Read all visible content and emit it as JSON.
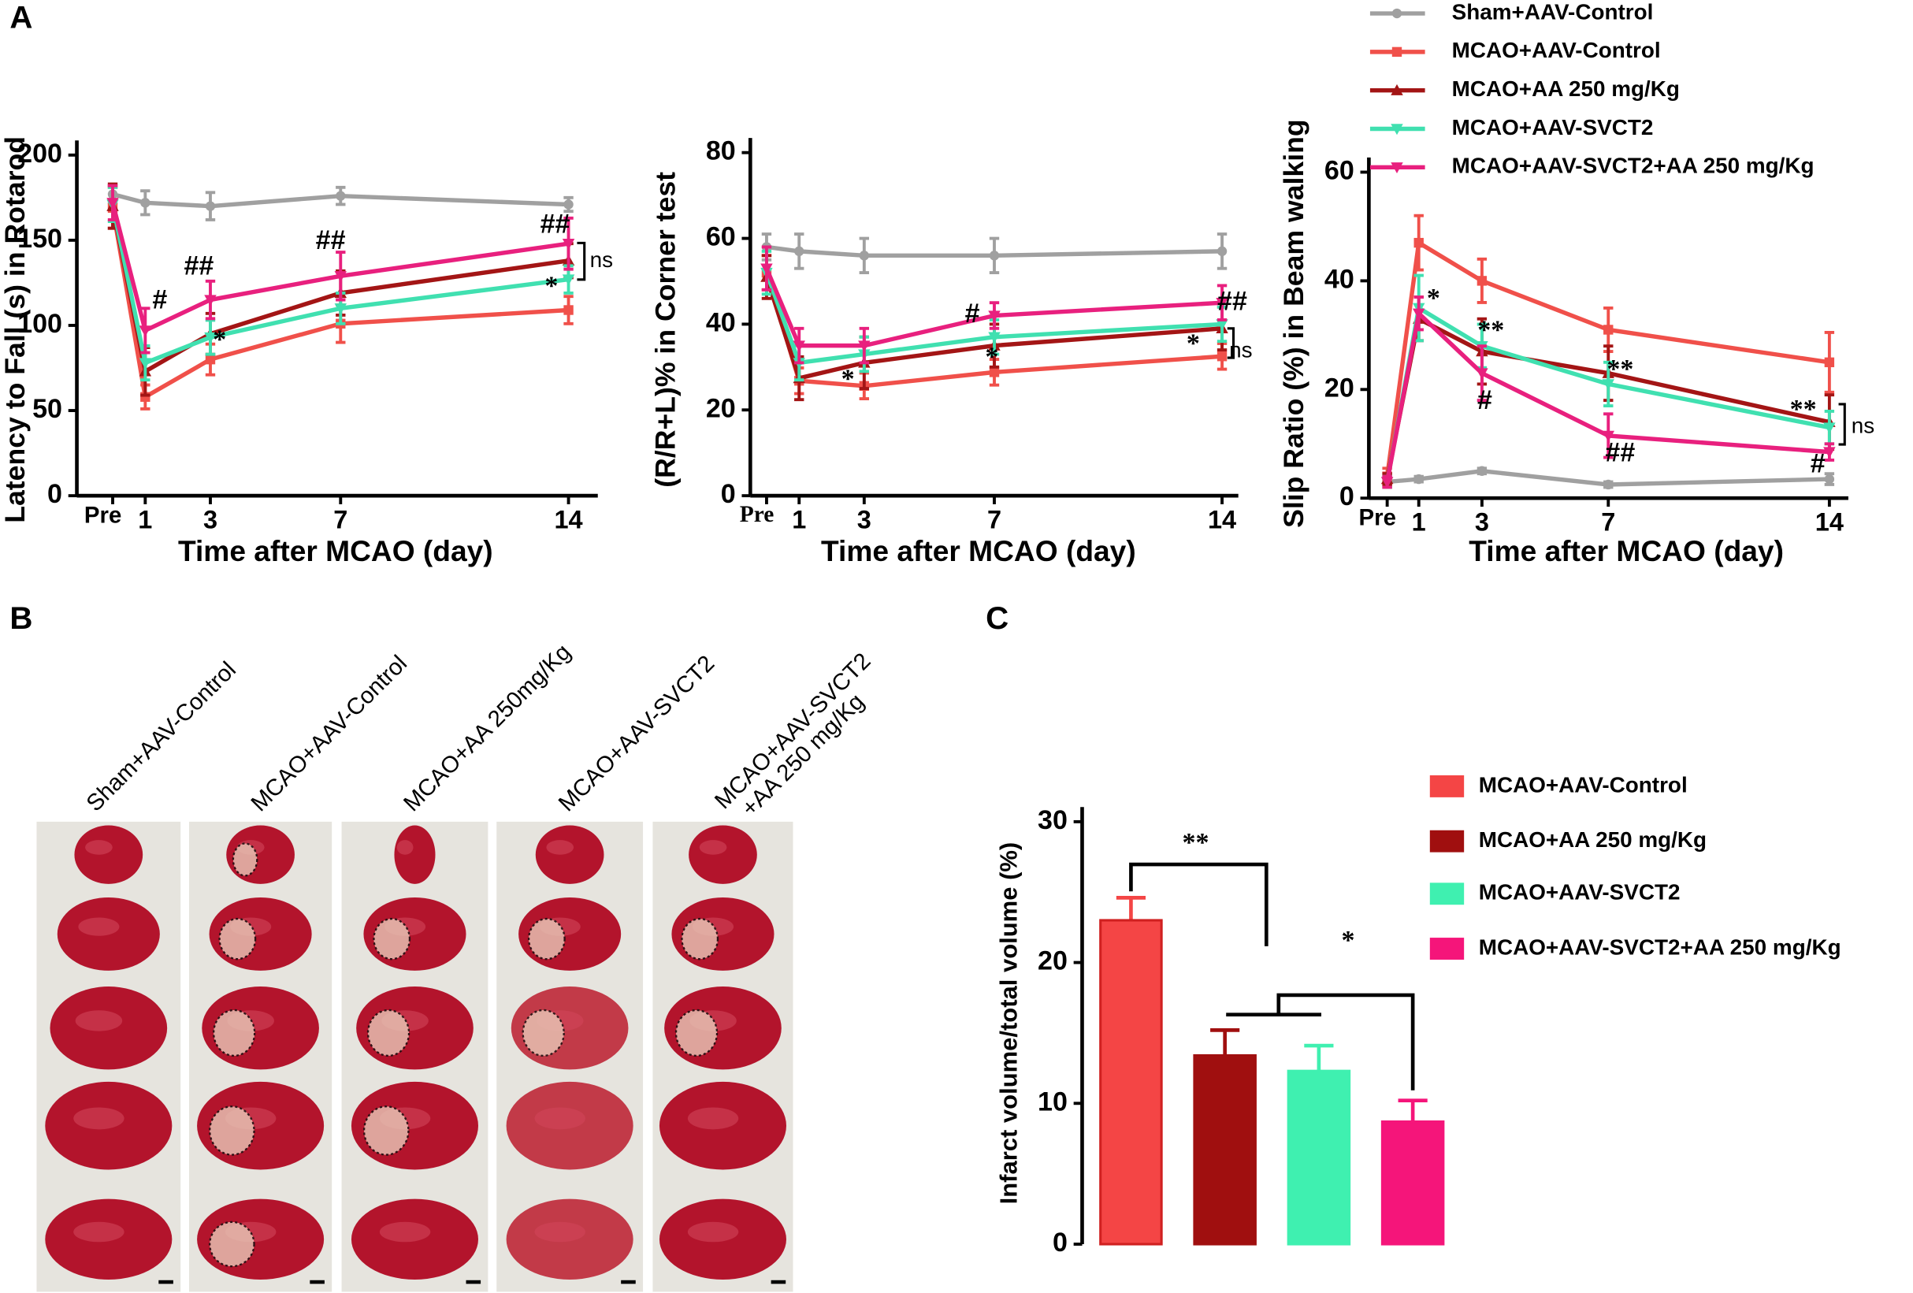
{
  "panels": [
    "A",
    "B",
    "C"
  ],
  "photos": {
    "labels": [
      "Sham+AAV-Control",
      "MCAO+AAV-Control",
      "MCAO+AA 250mg/Kg",
      "MCAO+AAV-SVCT2",
      [
        "MCAO+AAV-SVCT2",
        "+AA 250 mg/Kg"
      ]
    ]
  },
  "chart_data": [
    {
      "type": "line",
      "ylabel": "Latency to Fall (s) in Rotarod",
      "xlabel": "Time after MCAO (day)",
      "x": [
        0,
        1,
        3,
        7,
        14
      ],
      "xlim": [
        -1.1,
        14.9
      ],
      "xticks": [
        {
          "value": 0,
          "label": "Pre"
        },
        1,
        3,
        7,
        14
      ],
      "ylim": [
        0,
        200
      ],
      "yticks": [
        0,
        50,
        100,
        150,
        200
      ],
      "series": [
        {
          "color": "#a0a0a0",
          "values": [
            177,
            172,
            170,
            176,
            171
          ],
          "errors": [
            5,
            7,
            8,
            5,
            4
          ]
        },
        {
          "color": "#f0504a",
          "values": [
            169,
            58,
            80,
            101,
            109
          ],
          "errors": [
            12,
            7,
            9,
            11,
            8
          ]
        },
        {
          "color": "#a31515",
          "values": [
            170,
            73,
            95,
            119,
            138
          ],
          "errors": [
            13,
            14,
            12,
            13,
            10
          ]
        },
        {
          "color": "#40e0b0",
          "values": [
            171,
            78,
            93,
            110,
            127
          ],
          "errors": [
            10,
            10,
            10,
            9,
            8
          ]
        },
        {
          "color": "#e8207e",
          "values": [
            172,
            97,
            115,
            129,
            148
          ],
          "errors": [
            10,
            13,
            11,
            14,
            15
          ]
        }
      ],
      "annotations": [
        "#",
        "##",
        "##",
        "##",
        "*",
        "*",
        "ns"
      ]
    },
    {
      "type": "line",
      "ylabel": "(R/R+L)% in Corner test",
      "xlabel": "Time after MCAO (day)",
      "x": [
        0,
        1,
        3,
        7,
        14
      ],
      "xlim": [
        -0.5,
        14.5
      ],
      "xticks": [
        {
          "value": 0,
          "label": "Pre"
        },
        1,
        3,
        7,
        14
      ],
      "ylim": [
        0,
        80
      ],
      "yticks": [
        0,
        20,
        40,
        60,
        80
      ],
      "series": [
        {
          "color": "#a0a0a0",
          "values": [
            58,
            57,
            56,
            56,
            57
          ],
          "errors": [
            3,
            4,
            4,
            4,
            4
          ]
        },
        {
          "color": "#f0504a",
          "values": [
            52,
            26.8,
            25.6,
            28.8,
            32.5
          ],
          "errors": [
            4,
            3,
            3,
            3,
            3
          ]
        },
        {
          "color": "#a31515",
          "values": [
            51,
            27.4,
            31,
            35,
            39
          ],
          "errors": [
            5,
            5,
            6,
            5,
            5
          ]
        },
        {
          "color": "#40e0b0",
          "values": [
            52,
            31,
            33,
            37,
            40
          ],
          "errors": [
            5,
            4,
            4,
            4,
            4
          ]
        },
        {
          "color": "#e8207e",
          "values": [
            53,
            35,
            35,
            42,
            45
          ],
          "errors": [
            5,
            4,
            4,
            3,
            4
          ]
        }
      ],
      "annotations": [
        "*",
        "#",
        "*",
        "##",
        "*",
        "ns"
      ]
    },
    {
      "type": "line",
      "ylabel": "Slip Ratio (%) in Beam walking",
      "xlabel": "Time after MCAO (day)",
      "x": [
        0,
        1,
        3,
        7,
        14
      ],
      "xlim": [
        -0.58,
        14.6
      ],
      "xticks": [
        {
          "value": 0,
          "label": "Pre"
        },
        1,
        3,
        7,
        14
      ],
      "ylim": [
        0,
        60
      ],
      "yticks": [
        0,
        20,
        40,
        60
      ],
      "series": [
        {
          "name": "Sham+AAV-Control",
          "color": "#a0a0a0",
          "values": [
            3,
            3.5,
            5,
            2.5,
            3.5
          ],
          "errors": [
            1,
            0.5,
            0.5,
            0.5,
            1
          ]
        },
        {
          "name": "MCAO+AAV-Control",
          "color": "#f0504a",
          "values": [
            4,
            47,
            40,
            31,
            25
          ],
          "errors": [
            1.5,
            5,
            4,
            4,
            5.5
          ]
        },
        {
          "name": "MCAO+AA 250 mg/Kg",
          "color": "#a31515",
          "values": [
            3.5,
            33,
            27,
            23,
            14
          ],
          "errors": [
            1,
            4,
            6,
            5,
            5
          ]
        },
        {
          "name": "MCAO+AAV-SVCT2",
          "color": "#40e0b0",
          "values": [
            3,
            35,
            28,
            21,
            13
          ],
          "errors": [
            1,
            6,
            4,
            4,
            3
          ]
        },
        {
          "name": "MCAO+AAV-SVCT2+AA 250 mg/Kg",
          "color": "#e8207e",
          "values": [
            3,
            34,
            23,
            11.5,
            8.5
          ],
          "errors": [
            1,
            3,
            5,
            4,
            1.5
          ]
        }
      ],
      "annotations": [
        "*",
        "**",
        "#",
        "**",
        "##",
        "**",
        "#",
        "ns"
      ]
    },
    {
      "type": "bar",
      "ylabel": "Infarct volume/total volume (%)",
      "ylim": [
        0,
        30
      ],
      "yticks": [
        0,
        10,
        20,
        30
      ],
      "series": [
        {
          "name": "MCAO+AAV-Control",
          "color": "#f44545",
          "values": [
            23
          ],
          "errors": [
            1.6
          ]
        },
        {
          "name": "MCAO+AA 250 mg/Kg",
          "color": "#a00f0f",
          "values": [
            13.4
          ],
          "errors": [
            1.8
          ]
        },
        {
          "name": "MCAO+AAV-SVCT2",
          "color": "#3ff0b0",
          "values": [
            12.3
          ],
          "errors": [
            1.8
          ]
        },
        {
          "name": "MCAO+AAV-SVCT2+AA 250 mg/Kg",
          "color": "#f5157a",
          "values": [
            8.7
          ],
          "errors": [
            1.5
          ]
        }
      ],
      "annotations": [
        "**",
        "*"
      ]
    }
  ]
}
